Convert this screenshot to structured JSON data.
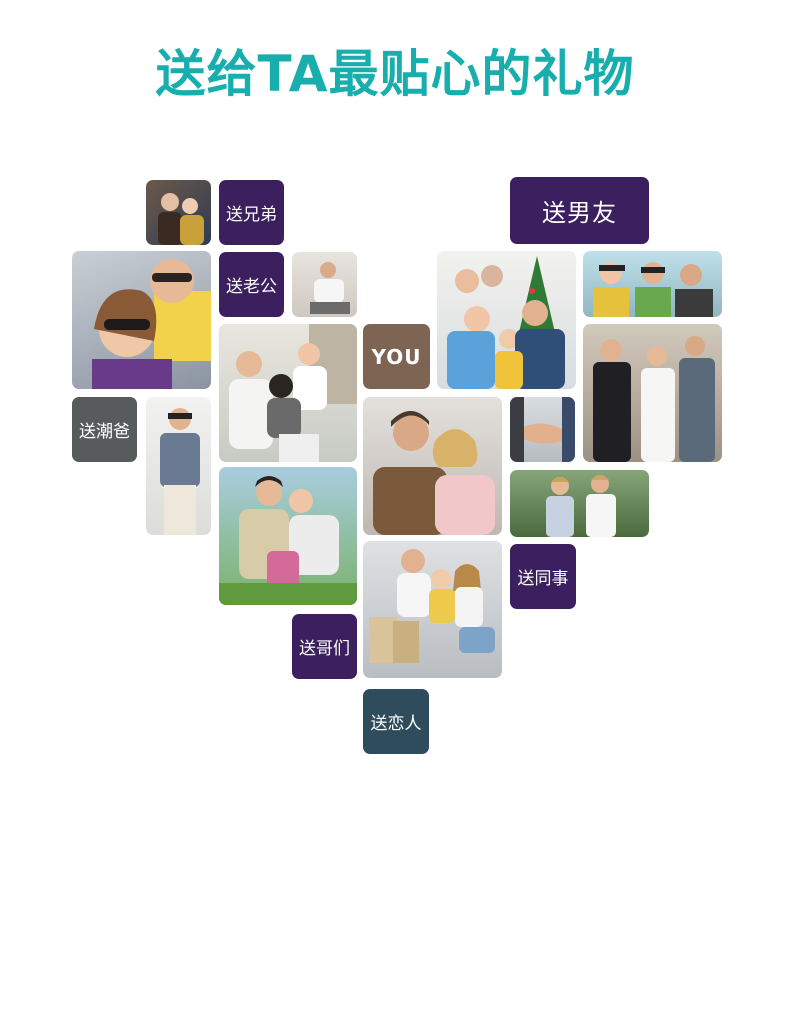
{
  "title": "送给TA最贴心的礼物",
  "colors": {
    "title": "#19aeae",
    "purple": "#3c1f5f",
    "brown": "#7e6453",
    "gray": "#575b5c",
    "teal": "#2e4c5c"
  },
  "labels": {
    "brother": "送兄弟",
    "husband": "送老公",
    "boyfriend": "送男友",
    "you": "YOU",
    "trendy_dad": "送潮爸",
    "colleague": "送同事",
    "buddies": "送哥们",
    "lover": "送恋人"
  },
  "photos": [
    "couple-photo-icon",
    "sunglasses-couple-photo-icon",
    "man-sitting-photo-icon",
    "family-photo-icon",
    "christmas-family-photo-icon",
    "friends-photo-icon",
    "grandfather-child-photo-icon",
    "hugging-couple-photo-icon",
    "hands-photo-icon",
    "business-men-photo-icon",
    "young-man-photo-icon",
    "family-outdoor-photo-icon",
    "colleagues-photo-icon",
    "shopping-family-photo-icon"
  ]
}
